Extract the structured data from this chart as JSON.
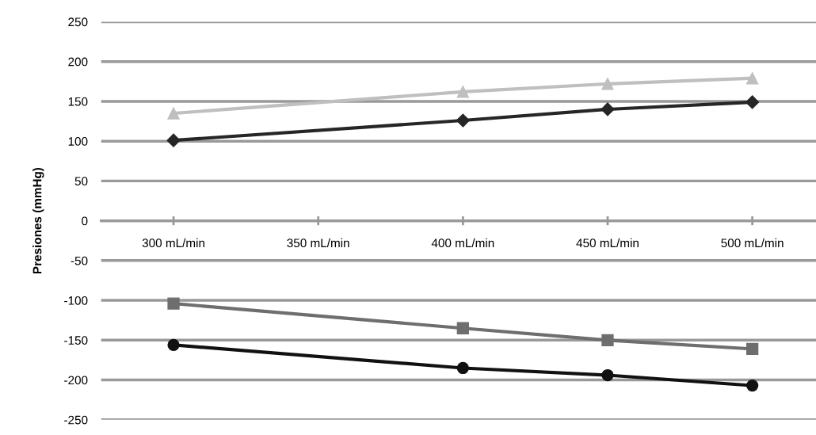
{
  "chart_data": {
    "type": "line",
    "ylabel": "Presiones (mmHg)",
    "x": [
      300,
      400,
      450,
      500
    ],
    "xlim": [
      275,
      522
    ],
    "xticks": [
      {
        "value": 300,
        "label": "300 mL/min"
      },
      {
        "value": 350,
        "label": "350 mL/min"
      },
      {
        "value": 400,
        "label": "400 mL/min"
      },
      {
        "value": 450,
        "label": "450 mL/min"
      },
      {
        "value": 500,
        "label": "500 mL/min"
      }
    ],
    "ylim": [
      -250,
      250
    ],
    "yticks": [
      -250,
      -200,
      -150,
      -100,
      -50,
      0,
      50,
      100,
      150,
      200,
      250
    ],
    "grid": "y",
    "series": [
      {
        "color": "#bfbfbf",
        "marker": "triangle",
        "values": [
          135,
          162,
          172,
          179
        ]
      },
      {
        "color": "#262626",
        "marker": "diamond",
        "values": [
          101,
          126,
          140,
          149
        ]
      },
      {
        "color": "#6e6e6e",
        "marker": "square",
        "values": [
          -104,
          -135,
          -150,
          -161
        ]
      },
      {
        "color": "#111111",
        "marker": "circle",
        "values": [
          -156,
          -185,
          -194,
          -207
        ]
      }
    ]
  }
}
